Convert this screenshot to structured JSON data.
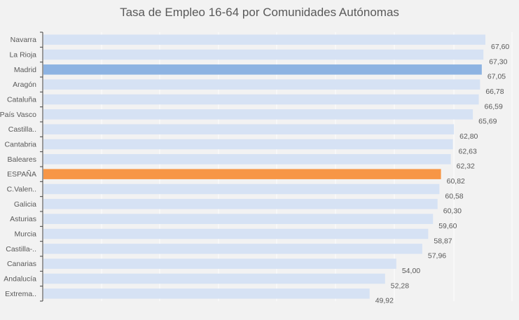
{
  "chart_data": {
    "type": "bar",
    "orientation": "horizontal",
    "title": "Tasa de Empleo 16-64 por Comunidades Autónomas",
    "xlabel": "",
    "ylabel": "",
    "xlim": [
      0,
      67.6
    ],
    "grid": true,
    "legend": "none",
    "categories": [
      "Navarra",
      "La Rioja",
      "Madrid",
      "Aragón",
      "Cataluña",
      "País Vasco",
      "Castilla..",
      "Cantabria",
      "Baleares",
      "ESPAÑA",
      "C.Valen..",
      "Galicia",
      "Asturias",
      "Murcia",
      "Castilla-..",
      "Canarias",
      "Andalucía",
      "Extrema.."
    ],
    "values": [
      67.6,
      67.3,
      67.05,
      66.78,
      66.59,
      65.69,
      62.8,
      62.63,
      62.32,
      60.82,
      60.58,
      60.3,
      59.6,
      58.87,
      57.96,
      54.0,
      52.28,
      49.92
    ],
    "value_labels": [
      "67,60",
      "67,30",
      "67,05",
      "66,78",
      "66,59",
      "65,69",
      "62,80",
      "62,63",
      "62,32",
      "60,82",
      "60,58",
      "60,30",
      "59,60",
      "58,87",
      "57,96",
      "54,00",
      "52,28",
      "49,92"
    ],
    "colors": {
      "default": "#d6e2f4",
      "highlight_madrid": "#8db3e2",
      "highlight_espana": "#f79646",
      "gridline": "#ffffff",
      "text": "#595959",
      "axis": "#404040"
    },
    "highlight": {
      "Madrid": "highlight_madrid",
      "ESPAÑA": "highlight_espana"
    }
  }
}
